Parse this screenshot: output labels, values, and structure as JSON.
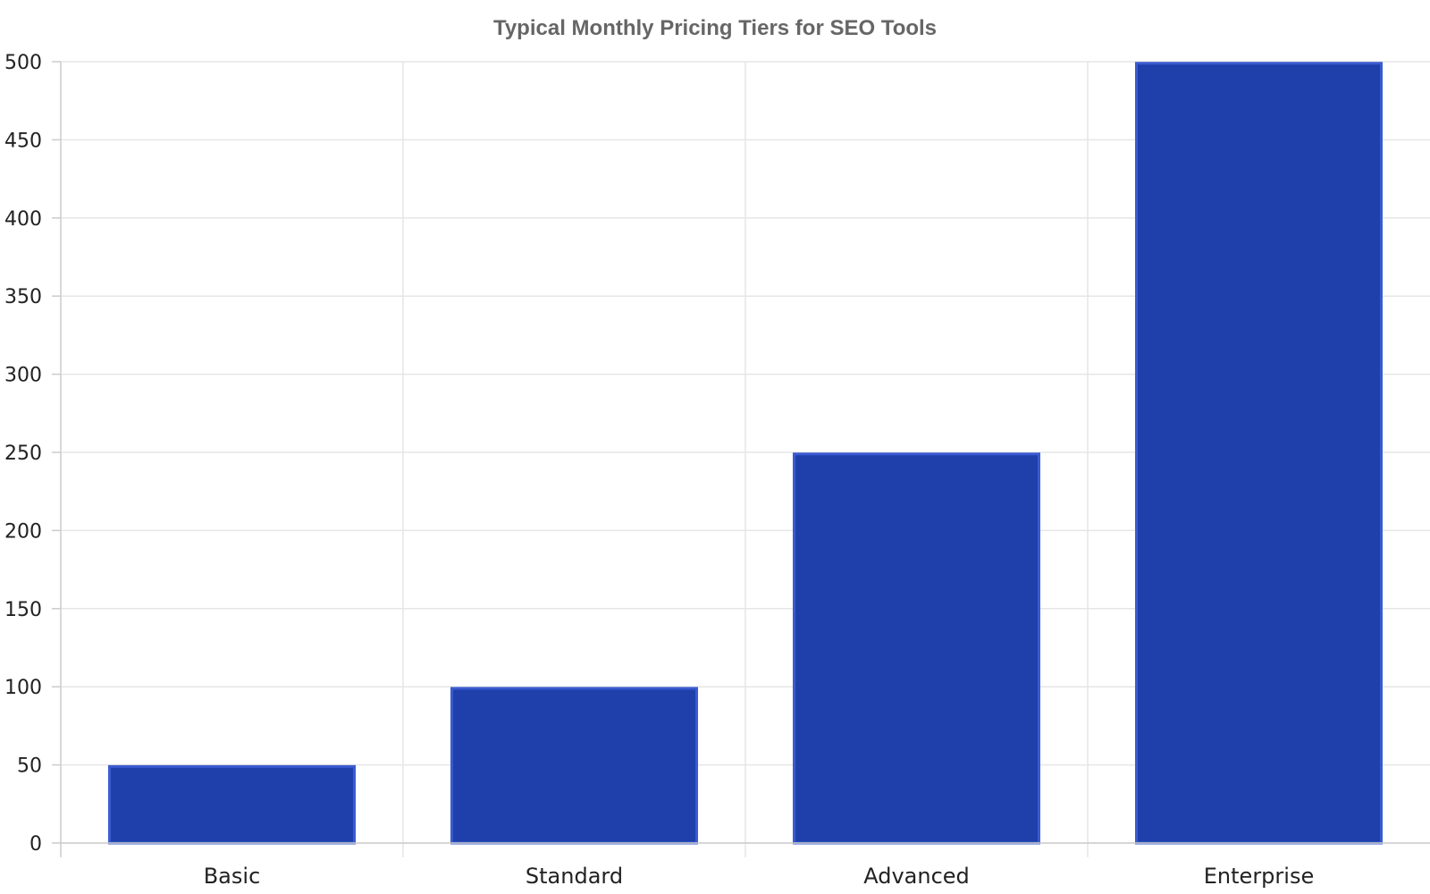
{
  "chart_data": {
    "type": "bar",
    "title": "Typical Monthly Pricing Tiers for SEO Tools",
    "xlabel": "",
    "ylabel": "",
    "categories": [
      "Basic",
      "Standard",
      "Advanced",
      "Enterprise"
    ],
    "values": [
      49,
      99,
      249,
      499
    ],
    "ylim": [
      0,
      500
    ],
    "yticks": [
      0,
      50,
      100,
      150,
      200,
      250,
      300,
      350,
      400,
      450,
      500
    ],
    "grid": true,
    "legend": "none",
    "bar_color": "#1f40aa",
    "bar_border_color": "#3a5bd0",
    "grid_color": "#e6e6e6",
    "axis_color": "#cccccc"
  }
}
